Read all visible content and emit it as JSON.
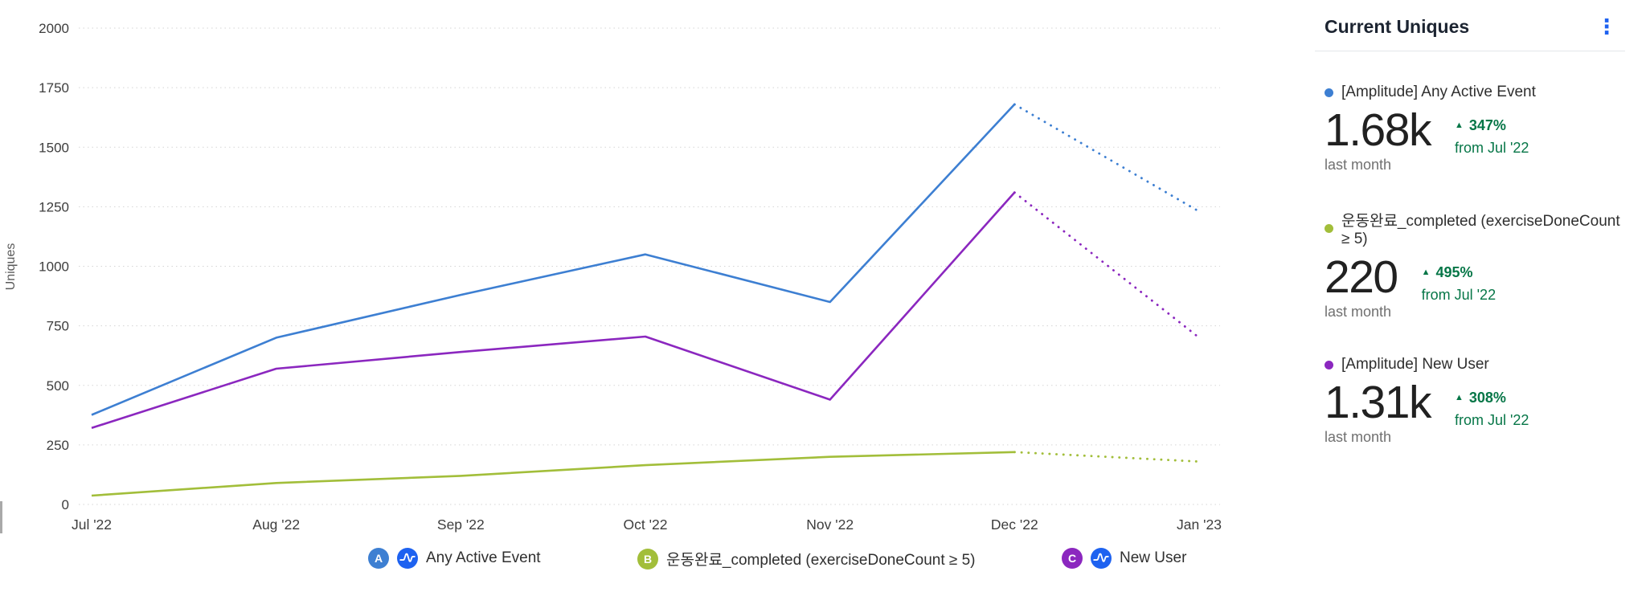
{
  "panel": {
    "title": "Current Uniques",
    "menu_icon": "kebab-menu",
    "change_color": "#067647",
    "metrics": [
      {
        "label": "[Amplitude] Any Active Event",
        "value": "1.68k",
        "period": "last month",
        "change": "347%",
        "change_direction": "up",
        "change_from": "from Jul '22",
        "color": "#3D7FD2"
      },
      {
        "label": "운동완료_completed (exerciseDoneCount ≥ 5)",
        "value": "220",
        "period": "last month",
        "change": "495%",
        "change_direction": "up",
        "change_from": "from Jul '22",
        "color": "#A2BE3A"
      },
      {
        "label": "[Amplitude] New User",
        "value": "1.31k",
        "period": "last month",
        "change": "308%",
        "change_direction": "up",
        "change_from": "from Jul '22",
        "color": "#8B27BF"
      }
    ]
  },
  "legend": [
    {
      "badge": "A",
      "badge_color": "#3D7FD2",
      "has_amplitude_icon": true,
      "label": "Any Active Event"
    },
    {
      "badge": "B",
      "badge_color": "#A2BE3A",
      "has_amplitude_icon": false,
      "label": "운동완료_completed (exerciseDoneCount ≥ 5)"
    },
    {
      "badge": "C",
      "badge_color": "#8B27BF",
      "has_amplitude_icon": true,
      "label": "New User"
    }
  ],
  "chart_data": {
    "type": "line",
    "title": "Current Uniques",
    "xlabel": "",
    "ylabel": "Uniques",
    "ylim": [
      0,
      2000
    ],
    "yticks": [
      0,
      250,
      500,
      750,
      1000,
      1250,
      1500,
      1750,
      2000
    ],
    "x": [
      "Jul '22",
      "Aug '22",
      "Sep '22",
      "Oct '22",
      "Nov '22",
      "Dec '22",
      "Jan '23"
    ],
    "grid": "horizontal-dotted",
    "legend_position": "bottom",
    "dashed_from_index": 5,
    "dashed_note": "segment after Dec '22 is a dotted projection of the incomplete month",
    "series": [
      {
        "name": "[Amplitude] Any Active Event",
        "color": "#3D7FD2",
        "values": [
          376,
          700,
          880,
          1050,
          850,
          1680,
          1230
        ]
      },
      {
        "name": "운동완료_completed (exerciseDoneCount ≥ 5)",
        "color": "#A2BE3A",
        "values": [
          37,
          90,
          120,
          165,
          200,
          220,
          180
        ]
      },
      {
        "name": "[Amplitude] New User",
        "color": "#8B27BF",
        "values": [
          321,
          570,
          640,
          705,
          440,
          1310,
          700
        ]
      }
    ]
  }
}
